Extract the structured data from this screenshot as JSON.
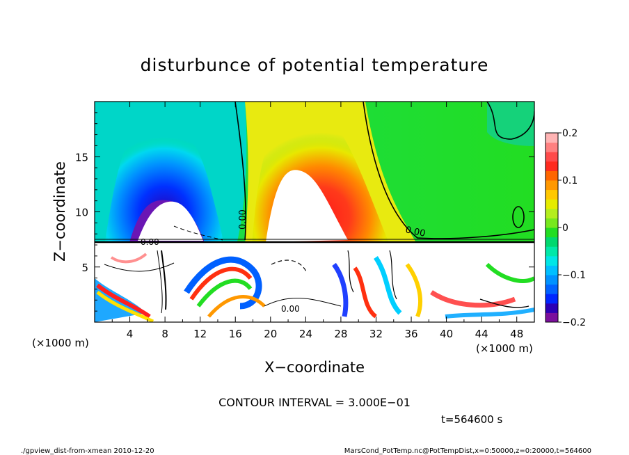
{
  "chart_data": {
    "type": "heatmap",
    "title": "disturbunce of potential temperature",
    "xlabel": "X−coordinate",
    "ylabel": "Z−coordinate",
    "x_unit": "(×1000 m)",
    "xlim": [
      0,
      50
    ],
    "ylim": [
      0,
      20
    ],
    "x_ticks": [
      "4",
      "8",
      "12",
      "16",
      "20",
      "24",
      "28",
      "32",
      "36",
      "40",
      "44",
      "48"
    ],
    "y_ticks": [
      "5",
      "10",
      "15"
    ],
    "colorbar": {
      "range": [
        -0.2,
        0.2
      ],
      "labels": [
        "0.2",
        "0.1",
        "0",
        "−0.1",
        "−0.2"
      ],
      "colors": [
        "#7b0f9c",
        "#2c00b5",
        "#0026ff",
        "#0062ff",
        "#0092ff",
        "#00bfff",
        "#00e6e6",
        "#00e8a8",
        "#00d86e",
        "#22dd22",
        "#77e81e",
        "#b4ee1e",
        "#e6ec00",
        "#ffc800",
        "#ff9800",
        "#ff6600",
        "#ff2a1e",
        "#ff4a4a",
        "#ff8080",
        "#ffb4b4"
      ]
    },
    "contour_labels": [
      "0.00",
      "0.00",
      "0.00",
      "0.00"
    ],
    "contour_interval_text": "CONTOUR INTERVAL = 3.000E−01",
    "time_text": "t=564600 s"
  },
  "footer": {
    "left": "./gpview_dist-from-xmean   2010-12-20",
    "right": "MarsCond_PotTemp.nc@PotTempDist,x=0:50000,z=0:20000,t=564600"
  }
}
